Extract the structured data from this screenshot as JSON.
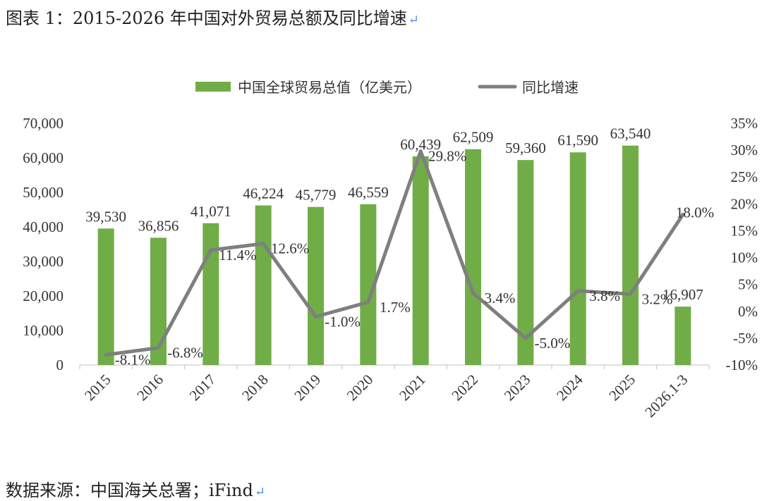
{
  "caption": "图表 1：2015-2026 年中国对外贸易总额及同比增速",
  "source": "数据来源：中国海关总署；iFind",
  "return_mark": "↵",
  "chart_data": {
    "type": "bar",
    "categories": [
      "2015",
      "2016",
      "2017",
      "2018",
      "2019",
      "2020",
      "2021",
      "2022",
      "2023",
      "2024",
      "2025",
      "2026.1-3"
    ],
    "series": [
      {
        "name": "中国全球贸易总值（亿美元）",
        "type": "bar",
        "axis": "left",
        "values": [
          39530,
          36856,
          41071,
          46224,
          45779,
          46559,
          60439,
          62509,
          59360,
          61590,
          63540,
          16907
        ],
        "labels": [
          "39,530",
          "36,856",
          "41,071",
          "46,224",
          "45,779",
          "46,559",
          "60,439",
          "62,509",
          "59,360",
          "61,590",
          "63,540",
          "16,907"
        ],
        "color": "#70ad47"
      },
      {
        "name": "同比增速",
        "type": "line",
        "axis": "right",
        "values": [
          -8.1,
          -6.8,
          11.4,
          12.6,
          -1.0,
          1.7,
          29.8,
          3.4,
          -5.0,
          3.8,
          3.2,
          18.0
        ],
        "labels": [
          "-8.1%",
          "-6.8%",
          "11.4%",
          "12.6%",
          "-1.0%",
          "1.7%",
          "29.8%",
          "3.4%",
          "-5.0%",
          "3.8%",
          "3.2%",
          "18.0%"
        ],
        "color": "#7f7f7f"
      }
    ],
    "y_left": {
      "min": 0,
      "max": 70000,
      "ticks": [
        "0",
        "10,000",
        "20,000",
        "30,000",
        "40,000",
        "50,000",
        "60,000",
        "70,000"
      ]
    },
    "y_right": {
      "min": -10,
      "max": 35,
      "ticks": [
        "-10%",
        "-5%",
        "0%",
        "5%",
        "10%",
        "15%",
        "20%",
        "25%",
        "30%",
        "35%"
      ]
    },
    "legend_position": "top-center",
    "grid": false
  }
}
